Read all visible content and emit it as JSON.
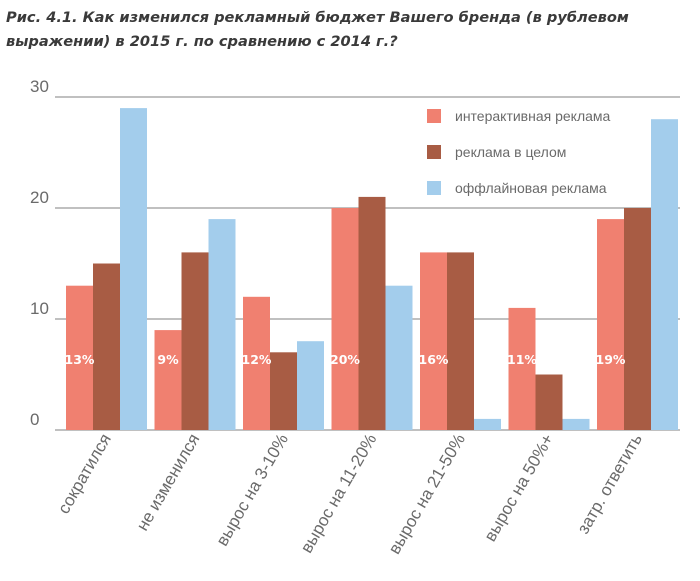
{
  "title": "Рис. 4.1. Как изменился рекламный бюджет Вашего бренда (в рублевом выражении) в 2015 г. по сравнению с 2014 г.?",
  "chart_data": {
    "type": "bar",
    "categories": [
      "сократился",
      "не изменился",
      "вырос на 3-10%",
      "вырос на 11-20%",
      "вырос на 21-50%",
      "вырос на 50%+",
      "затр. ответить"
    ],
    "series": [
      {
        "name": "интерактивная реклама",
        "color": "#f08070",
        "values": [
          13,
          9,
          12,
          20,
          16,
          11,
          19
        ],
        "data_labels": [
          "13%",
          "9%",
          "12%",
          "20%",
          "16%",
          "11%",
          "19%"
        ]
      },
      {
        "name": "реклама в целом",
        "color": "#a85c44",
        "values": [
          15,
          16,
          7,
          21,
          16,
          5,
          20
        ]
      },
      {
        "name": "оффлайновая реклама",
        "color": "#a3cdec",
        "values": [
          29,
          19,
          8,
          13,
          1,
          1,
          28
        ]
      }
    ],
    "y_ticks": [
      "0",
      "10",
      "20",
      "30"
    ],
    "ylim": [
      0,
      30
    ],
    "grid": true,
    "legend_position": "top-right"
  }
}
